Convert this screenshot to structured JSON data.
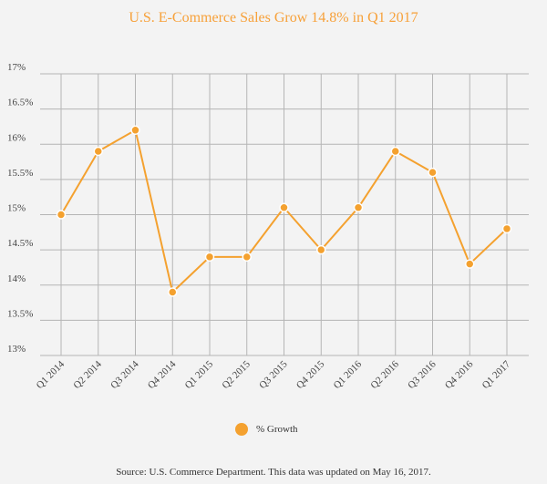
{
  "chart_data": {
    "type": "line",
    "title": "U.S. E-Commerce Sales Grow 14.8% in Q1 2017",
    "categories": [
      "Q1 2014",
      "Q2 2014",
      "Q3 2014",
      "Q4 2014",
      "Q1 2015",
      "Q2 2015",
      "Q3 2015",
      "Q4 2015",
      "Q1 2016",
      "Q2 2016",
      "Q3 2016",
      "Q4 2016",
      "Q1 2017"
    ],
    "series": [
      {
        "name": "% Growth",
        "values": [
          15.0,
          15.9,
          16.2,
          13.9,
          14.4,
          14.4,
          15.1,
          14.5,
          15.1,
          15.9,
          15.6,
          14.3,
          14.8
        ]
      }
    ],
    "ylim": [
      13,
      17
    ],
    "yticks": [
      13,
      13.5,
      14,
      14.5,
      15,
      15.5,
      16,
      16.5,
      17
    ],
    "ytick_labels": [
      "13%",
      "13.5%",
      "14%",
      "14.5%",
      "15%",
      "15.5%",
      "16%",
      "16.5%",
      "17%"
    ],
    "grid": true,
    "legend": "bottom-center",
    "colors": {
      "line": "#f4a12f",
      "title": "#f7a13a",
      "grid": "#b5b5b5",
      "background": "#f3f3f3"
    }
  },
  "source": "Source: U.S. Commerce Department. This data was updated on May 16, 2017."
}
